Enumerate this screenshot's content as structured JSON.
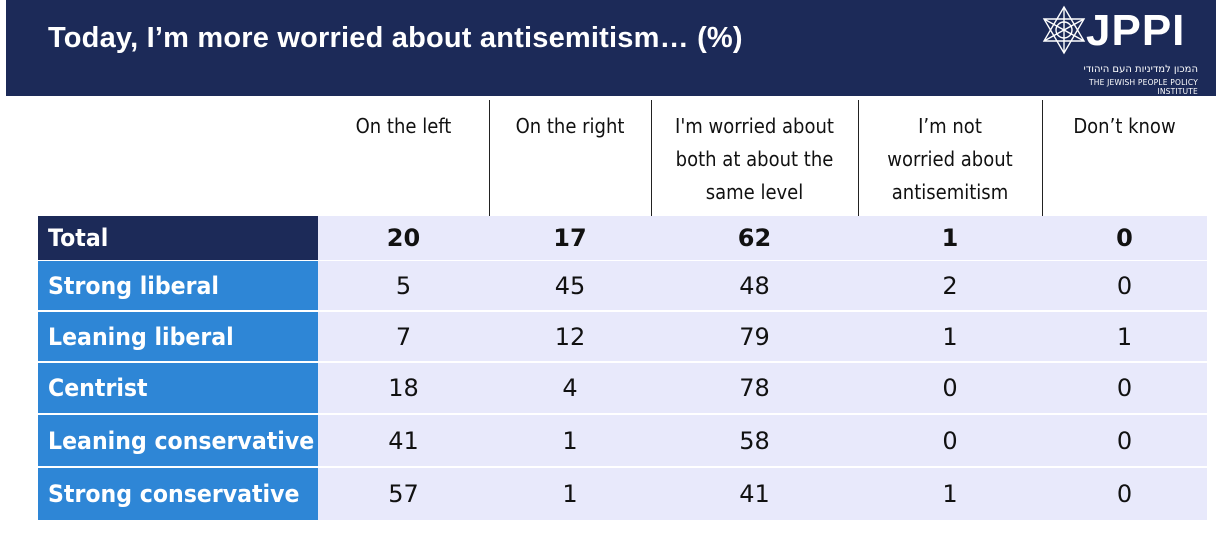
{
  "header": {
    "title": "Today, I’m more worried about antisemitism… (%)",
    "logo_text": "JPPI",
    "logo_hebrew": "המכון למדיניות העם היהודי",
    "logo_english": "THE JEWISH PEOPLE POLICY INSTITUTE"
  },
  "colors": {
    "header_bg": "#1c2a58",
    "total_label_bg": "#1c2a58",
    "row_label_bg": "#2e86d6",
    "cell_bg": "#e8e9fb"
  },
  "chart_data": {
    "type": "table",
    "title": "Today, I’m more worried about antisemitism… (%)",
    "columns": [
      "On the left",
      "On the right",
      "I'm worried about both at about the same level",
      "I’m not worried about antisemitism",
      "Don’t know"
    ],
    "column_lines": [
      [
        "On the left"
      ],
      [
        "On the right"
      ],
      [
        "I'm worried about",
        "both at about the",
        "same level"
      ],
      [
        "I’m not",
        "worried about",
        "antisemitism"
      ],
      [
        "Don’t know"
      ]
    ],
    "rows": [
      {
        "label": "Total",
        "values": [
          "20",
          "17",
          "62",
          "1",
          "0"
        ]
      },
      {
        "label": "Strong liberal",
        "values": [
          "5",
          "45",
          "48",
          "2",
          "0"
        ]
      },
      {
        "label": "Leaning liberal",
        "values": [
          "7",
          "12",
          "79",
          "1",
          "1"
        ]
      },
      {
        "label": "Centrist",
        "values": [
          "18",
          "4",
          "78",
          "0",
          "0"
        ]
      },
      {
        "label": "Leaning conservative",
        "values": [
          "41",
          "1",
          "58",
          "0",
          "0"
        ]
      },
      {
        "label": "Strong conservative",
        "values": [
          "57",
          "1",
          "41",
          "1",
          "0"
        ]
      }
    ]
  }
}
